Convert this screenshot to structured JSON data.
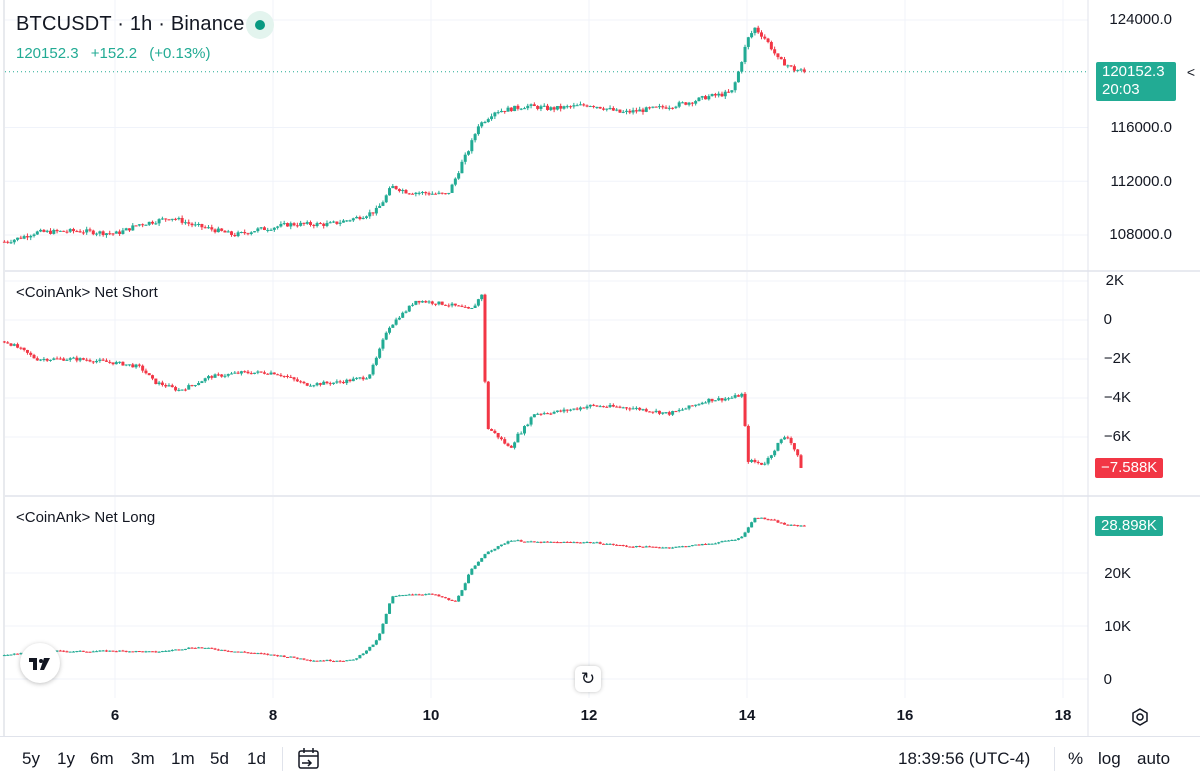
{
  "header": {
    "title": "BTCUSDT · 1h · Binance",
    "last_price": "120152.3",
    "change": "+152.2",
    "change_pct": "(+0.13%)"
  },
  "panes": {
    "price": {
      "y_ticks": [
        "124000.0",
        "116000.0",
        "112000.0",
        "108000.0"
      ],
      "price_tag": "120152.3",
      "countdown": "20:03"
    },
    "net_short": {
      "label": "<CoinAnk> Net Short",
      "y_ticks": [
        "2K",
        "0",
        "−2K",
        "−4K",
        "−6K"
      ],
      "value_tag": "−7.588K"
    },
    "net_long": {
      "label": "<CoinAnk> Net Long",
      "y_ticks": [
        "20K",
        "10K",
        "0"
      ],
      "value_tag": "28.898K"
    }
  },
  "x_axis": {
    "ticks": [
      "6",
      "8",
      "10",
      "12",
      "14",
      "16",
      "18"
    ]
  },
  "toolbar": {
    "ranges": [
      "5y",
      "1y",
      "6m",
      "3m",
      "1m",
      "5d",
      "1d"
    ],
    "time": "18:39:56 (UTC-4)",
    "percent": "%",
    "log": "log",
    "auto": "auto"
  },
  "colors": {
    "up": "#22ab94",
    "down": "#f23645",
    "grid": "#f0f3fa",
    "tag_green": "#22ab94",
    "tag_red": "#f23645"
  },
  "icons": [
    "tradingview-logo-icon",
    "reset-rotate-icon",
    "calendar-goto-icon",
    "settings-icon",
    "collapse-chevron-icon"
  ],
  "chart_data": [
    {
      "type": "candlestick",
      "title": "BTCUSDT · 1h · Binance",
      "x": [
        4.6,
        5.0,
        5.5,
        6.0,
        6.3,
        6.7,
        7.0,
        7.5,
        7.8,
        8.2,
        8.7,
        9.0,
        9.3,
        9.5,
        9.7,
        10.2,
        10.4,
        10.6,
        10.8,
        11.2,
        11.5,
        12.0,
        12.4,
        12.8,
        13.2,
        13.5,
        13.8,
        14.0,
        14.1,
        14.2,
        14.4,
        14.6,
        14.75
      ],
      "close": [
        107500,
        108200,
        108300,
        108100,
        108800,
        109300,
        108700,
        108000,
        108400,
        108800,
        108800,
        109200,
        109800,
        111600,
        111200,
        111000,
        113500,
        116200,
        117200,
        117600,
        117400,
        117700,
        117100,
        117400,
        117800,
        118300,
        118600,
        122500,
        123400,
        122800,
        121000,
        120300,
        120152.3
      ],
      "ylim": [
        106000,
        125000
      ],
      "y_ticks": [
        108000,
        112000,
        116000,
        124000
      ]
    },
    {
      "type": "candlestick",
      "title": "<CoinAnk> Net Short",
      "x": [
        4.6,
        5.0,
        5.5,
        6.0,
        6.3,
        6.5,
        6.8,
        7.2,
        7.6,
        8.0,
        8.4,
        8.8,
        9.2,
        9.45,
        9.6,
        9.8,
        10.2,
        10.5,
        10.65,
        10.7,
        11.0,
        11.1,
        11.3,
        11.6,
        12.0,
        12.5,
        13.0,
        13.5,
        13.8,
        13.95,
        14.0,
        14.2,
        14.4,
        14.5,
        14.7
      ],
      "close": [
        -1100,
        -2000,
        -2000,
        -2200,
        -2400,
        -3200,
        -3600,
        -2900,
        -2700,
        -2700,
        -3300,
        -3200,
        -2900,
        -400,
        200,
        1000,
        800,
        500,
        1400,
        -5500,
        -6600,
        -5900,
        -4800,
        -4700,
        -4400,
        -4500,
        -4800,
        -4100,
        -4000,
        -3800,
        -7200,
        -7400,
        -6300,
        -5900,
        -7588
      ],
      "y_ticks": [
        2000,
        0,
        -2000,
        -4000,
        -6000
      ]
    },
    {
      "type": "candlestick",
      "title": "<CoinAnk> Net Long",
      "x": [
        4.6,
        5.0,
        5.5,
        6.0,
        6.5,
        7.0,
        7.5,
        8.0,
        8.5,
        9.0,
        9.3,
        9.5,
        9.7,
        10.0,
        10.3,
        10.5,
        10.7,
        11.0,
        11.3,
        11.6,
        12.0,
        12.5,
        13.0,
        13.5,
        13.9,
        14.1,
        14.3,
        14.5,
        14.75
      ],
      "close": [
        4500,
        5300,
        5200,
        5300,
        5100,
        6000,
        5200,
        4500,
        3500,
        3500,
        7000,
        15500,
        16000,
        16000,
        14500,
        20500,
        24000,
        26200,
        25800,
        25800,
        25800,
        25000,
        24800,
        25500,
        26500,
        30500,
        30000,
        29000,
        28898
      ],
      "y_ticks": [
        0,
        10000,
        20000
      ]
    }
  ]
}
